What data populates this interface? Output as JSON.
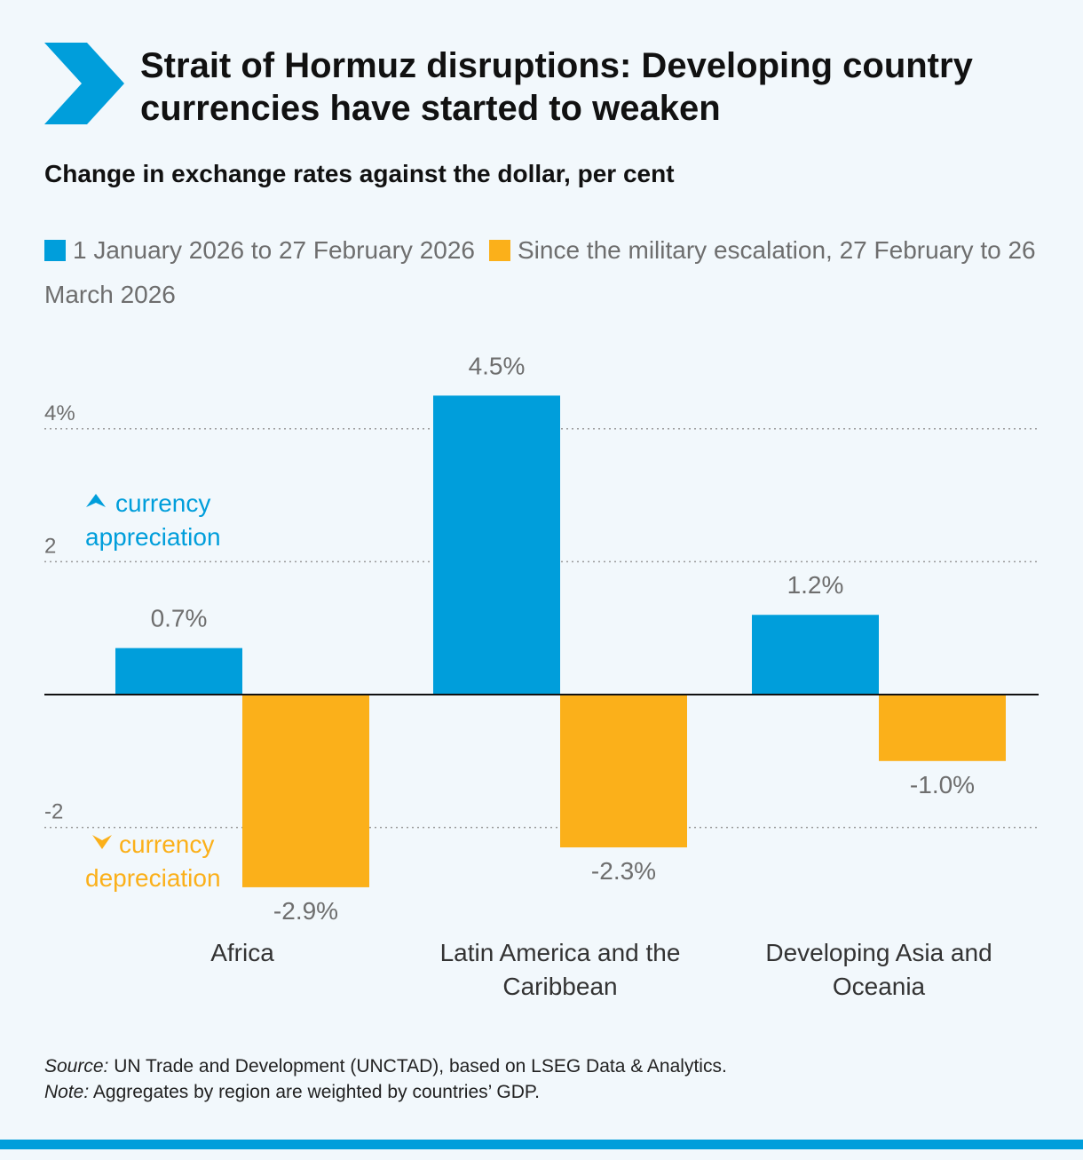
{
  "header": {
    "title": "Strait of Hormuz disruptions: Developing country currencies have started to weaken",
    "subtitle": "Change in exchange rates against the dollar, per cent",
    "chevron_icon": "chevron-right-icon",
    "accent_color": "#009edb"
  },
  "chart_data": {
    "type": "bar",
    "categories": [
      "Africa",
      "Latin America and the Caribbean",
      "Developing Asia and Oceania"
    ],
    "series": [
      {
        "name": "1 January 2026 to 27 February 2026",
        "color": "#009edb",
        "values": [
          0.7,
          4.5,
          1.2
        ],
        "labels": [
          "0.7%",
          "4.5%",
          "1.2%"
        ]
      },
      {
        "name": "Since the military escalation, 27 February to 26 March 2026",
        "color": "#fbb01a",
        "values": [
          -2.9,
          -2.3,
          -1.0
        ],
        "labels": [
          "-2.9%",
          "-2.3%",
          "-1.0%"
        ]
      }
    ],
    "ylim": [
      -2.9,
      4.5
    ],
    "yticks": [
      4,
      2,
      -2
    ],
    "ytick_labels": [
      "4%",
      "2",
      "-2"
    ],
    "grid": "dotted",
    "legend": "top",
    "annotations": {
      "appreciation_line1": "currency",
      "appreciation_line2": "appreciation",
      "depreciation_line1": "currency",
      "depreciation_line2": "depreciation"
    }
  },
  "footer": {
    "source_label": "Source:",
    "source_text": " UN Trade and Development (UNCTAD), based on LSEG Data & Analytics.",
    "note_label": "Note:",
    "note_text": " Aggregates by region are weighted by countries’ GDP."
  }
}
